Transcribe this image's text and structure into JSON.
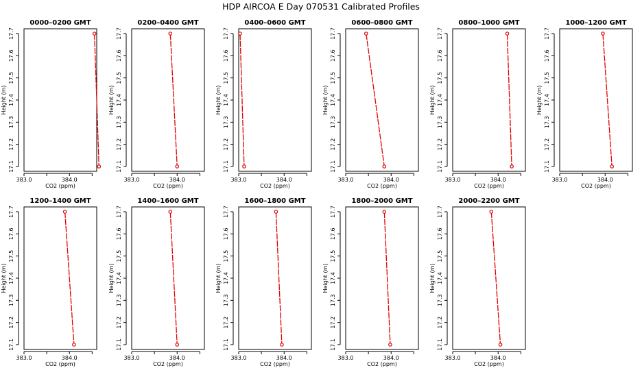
{
  "chart_data": {
    "type": "line",
    "title": "HDP  AIRCOA E  Day 070531  Calibrated Profiles",
    "xlabel": "CO2 (ppm)",
    "ylabel": "Height (m)",
    "xlim": [
      383.0,
      384.6
    ],
    "ylim": [
      17.1,
      17.7
    ],
    "xticks": [
      383.0,
      383.5,
      384.0,
      384.5
    ],
    "xtick_labels": [
      "383.0",
      "",
      "384.0",
      ""
    ],
    "yticks": [
      17.1,
      17.2,
      17.3,
      17.4,
      17.5,
      17.6,
      17.7
    ],
    "ytick_labels": [
      "17.1",
      "17.2",
      "17.3",
      "17.4",
      "17.5",
      "17.6",
      "17.7"
    ],
    "line_color": "#e00000",
    "panels": [
      {
        "title": "0000–0200 GMT",
        "x": [
          384.55,
          384.65
        ],
        "y": [
          17.7,
          17.1
        ]
      },
      {
        "title": "0200–0400 GMT",
        "x": [
          383.85,
          384.0
        ],
        "y": [
          17.7,
          17.1
        ]
      },
      {
        "title": "0400–0600 GMT",
        "x": [
          383.03,
          383.12
        ],
        "y": [
          17.7,
          17.1
        ]
      },
      {
        "title": "0600–0800 GMT",
        "x": [
          383.45,
          383.85
        ],
        "y": [
          17.7,
          17.1
        ]
      },
      {
        "title": "0800–1000 GMT",
        "x": [
          384.2,
          384.3
        ],
        "y": [
          17.7,
          17.1
        ]
      },
      {
        "title": "1000–1200 GMT",
        "x": [
          383.95,
          384.15
        ],
        "y": [
          17.7,
          17.1
        ]
      },
      {
        "title": "1200–1400 GMT",
        "x": [
          383.9,
          384.1
        ],
        "y": [
          17.7,
          17.1
        ]
      },
      {
        "title": "1400–1600 GMT",
        "x": [
          383.85,
          384.0
        ],
        "y": [
          17.7,
          17.1
        ]
      },
      {
        "title": "1600–1800 GMT",
        "x": [
          383.82,
          383.95
        ],
        "y": [
          17.7,
          17.1
        ]
      },
      {
        "title": "1800–2000 GMT",
        "x": [
          383.85,
          383.98
        ],
        "y": [
          17.7,
          17.1
        ]
      },
      {
        "title": "2000–2200 GMT",
        "x": [
          383.85,
          384.05
        ],
        "y": [
          17.7,
          17.1
        ]
      }
    ]
  }
}
